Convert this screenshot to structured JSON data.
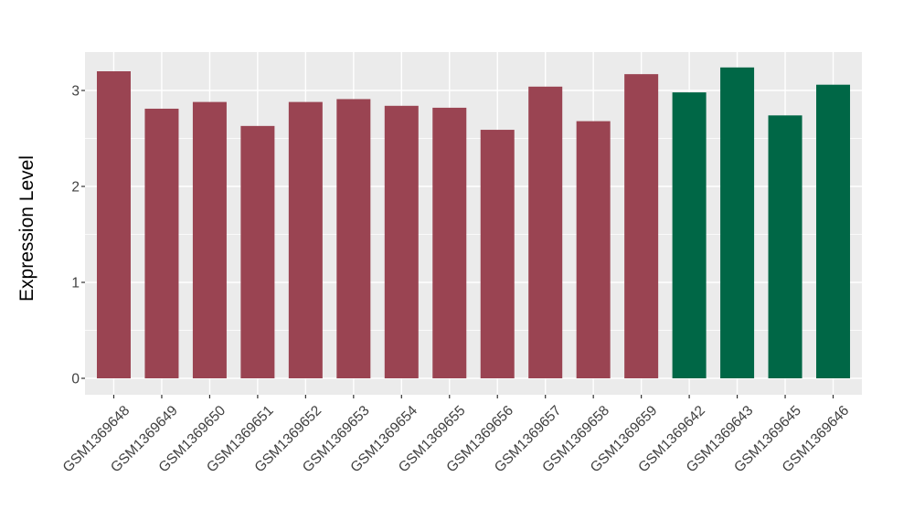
{
  "chart_data": {
    "type": "bar",
    "title": "",
    "xlabel": "",
    "ylabel": "Expression Level",
    "categories": [
      "GSM1369648",
      "GSM1369649",
      "GSM1369650",
      "GSM1369651",
      "GSM1369652",
      "GSM1369653",
      "GSM1369654",
      "GSM1369655",
      "GSM1369656",
      "GSM1369657",
      "GSM1369658",
      "GSM1369659",
      "GSM1369642",
      "GSM1369643",
      "GSM1369645",
      "GSM1369646"
    ],
    "values": [
      3.2,
      2.81,
      2.88,
      2.63,
      2.88,
      2.91,
      2.84,
      2.82,
      2.59,
      3.04,
      2.68,
      3.17,
      2.98,
      3.24,
      2.74,
      3.06
    ],
    "bar_groups": [
      "group-1",
      "group-1",
      "group-1",
      "group-1",
      "group-1",
      "group-1",
      "group-1",
      "group-1",
      "group-1",
      "group-1",
      "group-1",
      "group-1",
      "group-2",
      "group-2",
      "group-2",
      "group-2"
    ],
    "group_colors": {
      "group-1": "#9A4452",
      "group-2": "#006746"
    },
    "yticks": [
      0,
      1,
      2,
      3
    ],
    "yticks_minor": [
      0.5,
      1.5,
      2.5
    ],
    "ylim": [
      0,
      3.4
    ],
    "grid": true,
    "legend_position": "none",
    "colors": {
      "panel_bg": "#EBEBEB",
      "grid": "#FFFFFF",
      "tick_text": "#404040",
      "axis_title": "#000000",
      "tick_mark": "#333333",
      "page_bg": "#FFFFFF"
    }
  }
}
